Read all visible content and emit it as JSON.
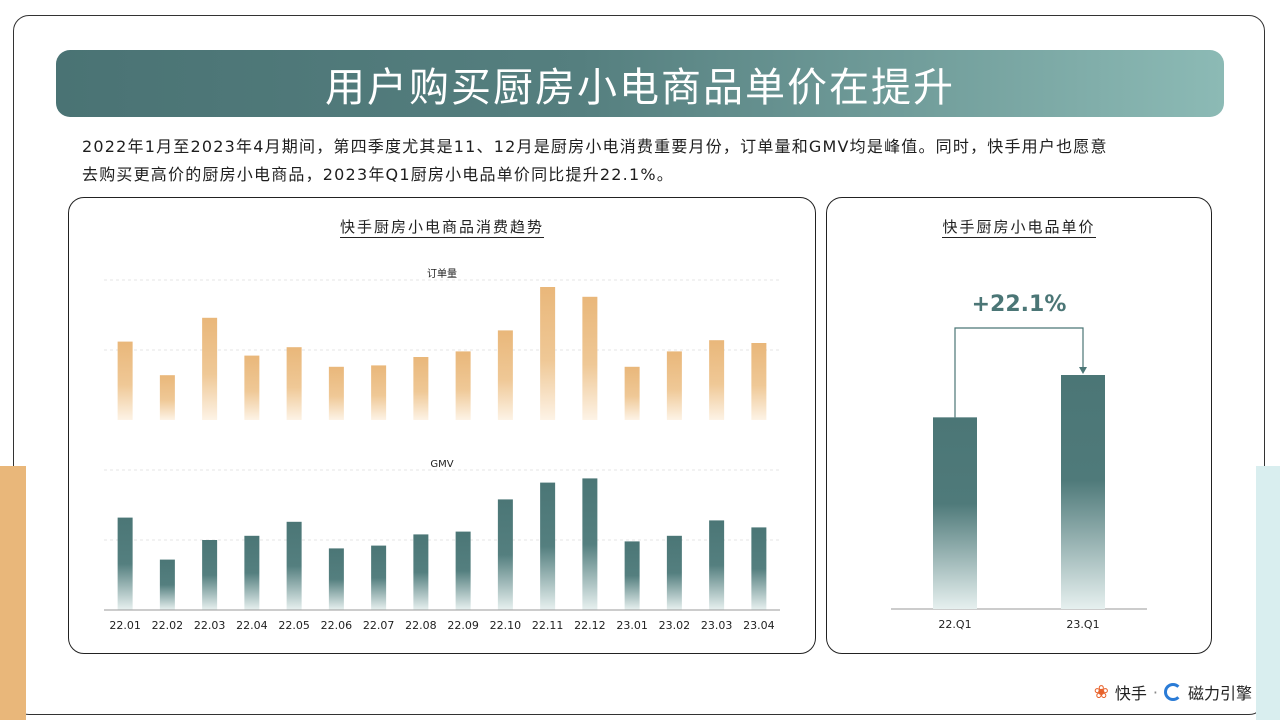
{
  "banner": {
    "title": "用户购买厨房小电商品单价在提升"
  },
  "intro": {
    "line1": "2022年1月至2023年4月期间，第四季度尤其是11、12月是厨房小电消费重要月份，订单量和GMV均是峰值。同时，快手用户也愿意",
    "line2": "去购买更高价的厨房小电商品，2023年Q1厨房小电品单价同比提升22.1%。"
  },
  "left_card": {
    "title": "快手厨房小电商品消费趋势"
  },
  "right_card": {
    "title": "快手厨房小电品单价",
    "growth_label": "+22.1%"
  },
  "footer": {
    "brand1": "快手",
    "separator": "·",
    "brand2": "磁力引擎"
  },
  "colors": {
    "orange": "#e9b77a",
    "teal": "#4b7676",
    "teal_light": "#d9eeef"
  },
  "chart_data": [
    {
      "type": "bar",
      "title": "订单量",
      "categories": [
        "22.01",
        "22.02",
        "22.03",
        "22.04",
        "22.05",
        "22.06",
        "22.07",
        "22.08",
        "22.09",
        "22.10",
        "22.11",
        "22.12",
        "23.01",
        "23.02",
        "23.03",
        "23.04"
      ],
      "values": [
        56,
        32,
        73,
        46,
        52,
        38,
        39,
        45,
        49,
        64,
        95,
        88,
        38,
        49,
        57,
        55
      ],
      "ylim": [
        0,
        100
      ],
      "grid": true
    },
    {
      "type": "bar",
      "title": "GMV",
      "categories": [
        "22.01",
        "22.02",
        "22.03",
        "22.04",
        "22.05",
        "22.06",
        "22.07",
        "22.08",
        "22.09",
        "22.10",
        "22.11",
        "22.12",
        "23.01",
        "23.02",
        "23.03",
        "23.04"
      ],
      "values": [
        66,
        36,
        50,
        53,
        63,
        44,
        46,
        54,
        56,
        79,
        91,
        94,
        49,
        53,
        64,
        59
      ],
      "ylim": [
        0,
        100
      ],
      "grid": true
    },
    {
      "type": "bar",
      "title": "快手厨房小电品单价",
      "categories": [
        "22.Q1",
        "23.Q1"
      ],
      "values": [
        100,
        122.1
      ],
      "annotation": "+22.1%"
    }
  ]
}
